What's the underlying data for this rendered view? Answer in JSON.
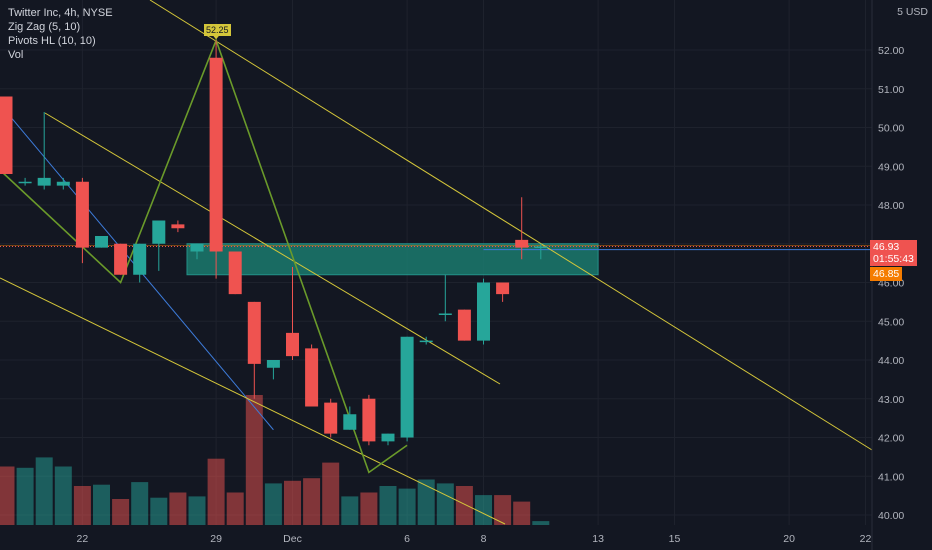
{
  "legend": {
    "symbol_line": "Twitter Inc, 4h, NYSE",
    "zigzag": "Zig Zag (5, 10)",
    "pivots": "Pivots HL (10, 10)",
    "vol": "Vol"
  },
  "axis": {
    "unit_label": "USD",
    "top_partial": "5"
  },
  "price_tag": {
    "price": "46.93",
    "countdown": "01:55:43",
    "secondary": "46.85"
  },
  "peak_label": "52.25",
  "colors": {
    "up": "#26a69a",
    "down": "#ef5350",
    "bg": "#131722",
    "zigzag": "#6a9a2a",
    "trend": "#d4c63a",
    "blue": "#3d7bd9",
    "zone": "#1b7a6e",
    "tag_red": "#ef5350",
    "tag_orange": "#f57c00"
  },
  "chart_data": {
    "type": "candlestick",
    "y_ticks": [
      "40.00",
      "41.00",
      "42.00",
      "43.00",
      "44.00",
      "45.00",
      "46.00",
      "47.00",
      "48.00",
      "49.00",
      "50.00",
      "51.00",
      "52.00"
    ],
    "ylim": [
      39.8,
      53.0
    ],
    "x_ticks": [
      {
        "label": "22",
        "bar": 4
      },
      {
        "label": "29",
        "bar": 11
      },
      {
        "label": "Dec",
        "bar": 15
      },
      {
        "label": "6",
        "bar": 21
      },
      {
        "label": "8",
        "bar": 25
      },
      {
        "label": "13",
        "bar": 31
      },
      {
        "label": "15",
        "bar": 35
      },
      {
        "label": "20",
        "bar": 41
      },
      {
        "label": "22",
        "bar": 45
      }
    ],
    "candles": [
      {
        "o": 50.8,
        "h": 50.8,
        "l": 48.8,
        "c": 48.8
      },
      {
        "o": 48.6,
        "h": 48.7,
        "l": 48.5,
        "c": 48.6
      },
      {
        "o": 48.5,
        "h": 50.4,
        "l": 48.4,
        "c": 48.7
      },
      {
        "o": 48.5,
        "h": 48.7,
        "l": 48.4,
        "c": 48.6
      },
      {
        "o": 48.6,
        "h": 48.7,
        "l": 46.5,
        "c": 46.9
      },
      {
        "o": 46.9,
        "h": 47.2,
        "l": 46.9,
        "c": 47.2
      },
      {
        "o": 47.0,
        "h": 47.0,
        "l": 46.2,
        "c": 46.2
      },
      {
        "o": 46.2,
        "h": 47.0,
        "l": 46.0,
        "c": 47.0
      },
      {
        "o": 47.0,
        "h": 47.6,
        "l": 46.3,
        "c": 47.6
      },
      {
        "o": 47.5,
        "h": 47.6,
        "l": 47.3,
        "c": 47.4
      },
      {
        "o": 46.8,
        "h": 47.0,
        "l": 46.6,
        "c": 47.0
      },
      {
        "o": 51.8,
        "h": 52.25,
        "l": 46.1,
        "c": 46.8
      },
      {
        "o": 46.8,
        "h": 46.8,
        "l": 45.7,
        "c": 45.7
      },
      {
        "o": 45.5,
        "h": 45.5,
        "l": 43.0,
        "c": 43.9
      },
      {
        "o": 43.8,
        "h": 44.0,
        "l": 43.5,
        "c": 44.0
      },
      {
        "o": 44.7,
        "h": 46.4,
        "l": 44.0,
        "c": 44.1
      },
      {
        "o": 44.3,
        "h": 44.4,
        "l": 42.8,
        "c": 42.8
      },
      {
        "o": 42.9,
        "h": 43.0,
        "l": 42.0,
        "c": 42.1
      },
      {
        "o": 42.2,
        "h": 42.8,
        "l": 42.2,
        "c": 42.6
      },
      {
        "o": 43.0,
        "h": 43.1,
        "l": 41.8,
        "c": 41.9
      },
      {
        "o": 41.9,
        "h": 42.1,
        "l": 41.8,
        "c": 42.1
      },
      {
        "o": 42.0,
        "h": 44.6,
        "l": 41.9,
        "c": 44.6
      },
      {
        "o": 44.5,
        "h": 44.6,
        "l": 44.4,
        "c": 44.5
      },
      {
        "o": 45.2,
        "h": 46.2,
        "l": 45.0,
        "c": 45.2
      },
      {
        "o": 45.3,
        "h": 45.3,
        "l": 44.5,
        "c": 44.5
      },
      {
        "o": 44.5,
        "h": 46.1,
        "l": 44.4,
        "c": 46.0
      },
      {
        "o": 46.0,
        "h": 46.0,
        "l": 45.5,
        "c": 45.7
      },
      {
        "o": 47.1,
        "h": 48.2,
        "l": 46.6,
        "c": 46.9
      },
      {
        "o": 46.9,
        "h": 47.0,
        "l": 46.6,
        "c": 46.93
      }
    ],
    "volume": [
      0.45,
      0.44,
      0.52,
      0.45,
      0.3,
      0.31,
      0.2,
      0.33,
      0.21,
      0.25,
      0.22,
      0.51,
      0.25,
      1.0,
      0.32,
      0.34,
      0.36,
      0.48,
      0.22,
      0.25,
      0.3,
      0.28,
      0.35,
      0.32,
      0.3,
      0.23,
      0.23,
      0.18,
      0.03
    ],
    "zone": {
      "top": 47.0,
      "bottom": 46.2,
      "from_bar": 10,
      "to_bar": 31
    },
    "price_line": 46.93,
    "secondary_line": 46.85
  }
}
